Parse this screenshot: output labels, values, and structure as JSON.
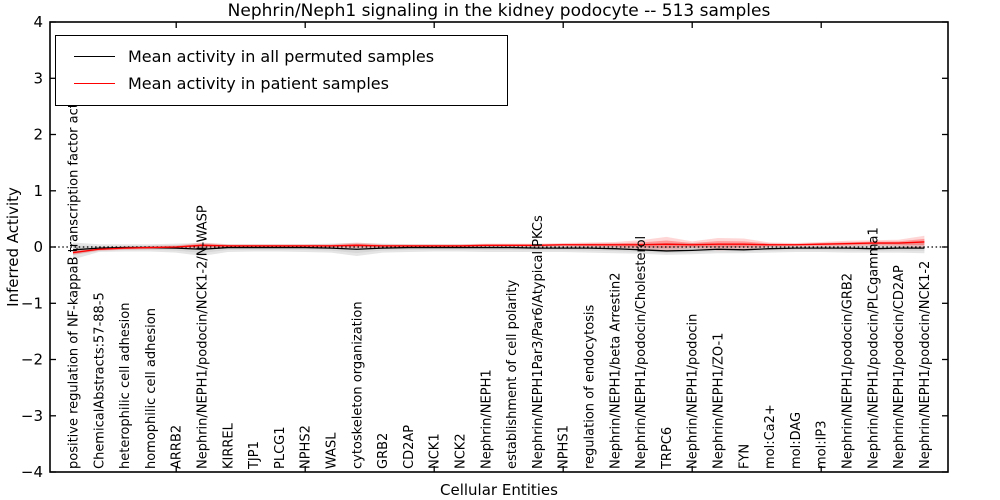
{
  "figure": {
    "title": "Nephrin/Neph1 signaling in the kidney podocyte -- 513 samples",
    "xlabel": "Cellular Entities",
    "ylabel": "Inferred Activity"
  },
  "legend": {
    "position": "upper left",
    "items": [
      {
        "label": "Mean activity in all permuted samples",
        "color": "#000000"
      },
      {
        "label": "Mean activity in patient samples",
        "color": "#ff0000"
      }
    ]
  },
  "axes": {
    "y_tick_labels": [
      "4",
      "3",
      "2",
      "1",
      "0",
      "−1",
      "−2",
      "−3",
      "−4"
    ],
    "y_tick_values": [
      4,
      3,
      2,
      1,
      0,
      -1,
      -2,
      -3,
      -4
    ],
    "x_major_tick_every": 5
  },
  "chart_data": {
    "type": "line",
    "title": "Nephrin/Neph1 signaling in the kidney podocyte -- 513 samples",
    "xlabel": "Cellular Entities",
    "ylabel": "Inferred Activity",
    "ylim": [
      -4,
      4
    ],
    "grid": false,
    "legend_position": "upper left",
    "reference_line": {
      "y": 0,
      "style": "dotted",
      "color": "#000000"
    },
    "categories": [
      "positive regulation of NF-kappaB transcription factor activity",
      "ChemicalAbstracts:57-88-5",
      "heterophilic cell adhesion",
      "homophilic cell adhesion",
      "ARRB2",
      "Nephrin/NEPH1/podocin/NCK1-2/N-WASP",
      "KIRREL",
      "TJP1",
      "PLCG1",
      "NPHS2",
      "WASL",
      "cytoskeleton organization",
      "GRB2",
      "CD2AP",
      "NCK1",
      "NCK2",
      "Nephrin/NEPH1",
      "establishment of cell polarity",
      "Nephrin/NEPH1Par3/Par6/Atypical PKCs",
      "NPHS1",
      "regulation of endocytosis",
      "Nephrin/NEPH1/beta Arrestin2",
      "Nephrin/NEPH1/podocin/Cholesterol",
      "TRPC6",
      "Nephrin/NEPH1/podocin",
      "Nephrin/NEPH1/ZO-1",
      "FYN",
      "mol:Ca2+",
      "mol:DAG",
      "mol:IP3",
      "Nephrin/NEPH1/podocin/GRB2",
      "Nephrin/NEPH1/podocin/PLCgamma1",
      "Nephrin/NEPH1/podocin/CD2AP",
      "Nephrin/NEPH1/podocin/NCK1-2"
    ],
    "series": [
      {
        "name": "Mean activity in all permuted samples",
        "color": "#000000",
        "values": [
          -0.05,
          -0.02,
          -0.01,
          -0.01,
          -0.02,
          -0.04,
          -0.01,
          -0.01,
          -0.01,
          -0.01,
          -0.02,
          -0.04,
          -0.02,
          -0.01,
          -0.01,
          -0.01,
          -0.01,
          -0.01,
          -0.02,
          -0.02,
          -0.02,
          -0.03,
          -0.05,
          -0.07,
          -0.06,
          -0.04,
          -0.05,
          -0.03,
          -0.02,
          -0.02,
          -0.02,
          -0.03,
          -0.02,
          -0.02
        ]
      },
      {
        "name": "Mean activity in patient samples",
        "color": "#ff0000",
        "values": [
          -0.1,
          -0.04,
          -0.02,
          -0.01,
          0.0,
          0.03,
          0.02,
          0.02,
          0.02,
          0.02,
          0.02,
          0.03,
          0.02,
          0.02,
          0.02,
          0.02,
          0.03,
          0.03,
          0.03,
          0.04,
          0.04,
          0.04,
          0.04,
          0.05,
          0.04,
          0.05,
          0.05,
          0.04,
          0.04,
          0.05,
          0.06,
          0.07,
          0.07,
          0.09
        ]
      }
    ],
    "bands": [
      {
        "name": "permuted-samples-range",
        "color": "#cccccc",
        "lo": [
          -0.22,
          -0.09,
          -0.08,
          -0.08,
          -0.1,
          -0.16,
          -0.09,
          -0.08,
          -0.08,
          -0.09,
          -0.1,
          -0.16,
          -0.1,
          -0.09,
          -0.08,
          -0.08,
          -0.09,
          -0.09,
          -0.09,
          -0.09,
          -0.1,
          -0.11,
          -0.12,
          -0.14,
          -0.13,
          -0.11,
          -0.11,
          -0.1,
          -0.09,
          -0.09,
          -0.1,
          -0.1,
          -0.1,
          -0.11
        ],
        "hi": [
          0.08,
          0.05,
          0.05,
          0.05,
          0.06,
          0.07,
          0.05,
          0.05,
          0.05,
          0.05,
          0.06,
          0.07,
          0.06,
          0.05,
          0.05,
          0.05,
          0.05,
          0.05,
          0.05,
          0.05,
          0.06,
          0.06,
          0.06,
          0.07,
          0.07,
          0.06,
          0.06,
          0.06,
          0.05,
          0.05,
          0.06,
          0.06,
          0.06,
          0.07
        ]
      },
      {
        "name": "patient-samples-range",
        "color": "#ff0000",
        "lo": [
          -0.14,
          -0.07,
          -0.05,
          -0.04,
          -0.03,
          -0.02,
          -0.01,
          -0.01,
          -0.01,
          -0.01,
          -0.01,
          -0.02,
          -0.01,
          -0.01,
          -0.01,
          -0.01,
          0.0,
          0.0,
          0.0,
          0.01,
          0.0,
          -0.01,
          -0.04,
          -0.08,
          -0.02,
          -0.06,
          -0.05,
          0.0,
          0.01,
          0.01,
          0.01,
          0.02,
          0.01,
          -0.02
        ],
        "hi": [
          -0.06,
          -0.01,
          0.01,
          0.02,
          0.03,
          0.08,
          0.05,
          0.05,
          0.05,
          0.05,
          0.05,
          0.08,
          0.05,
          0.05,
          0.05,
          0.05,
          0.06,
          0.06,
          0.06,
          0.07,
          0.08,
          0.09,
          0.12,
          0.18,
          0.1,
          0.16,
          0.15,
          0.08,
          0.07,
          0.09,
          0.11,
          0.12,
          0.13,
          0.2
        ]
      }
    ]
  }
}
